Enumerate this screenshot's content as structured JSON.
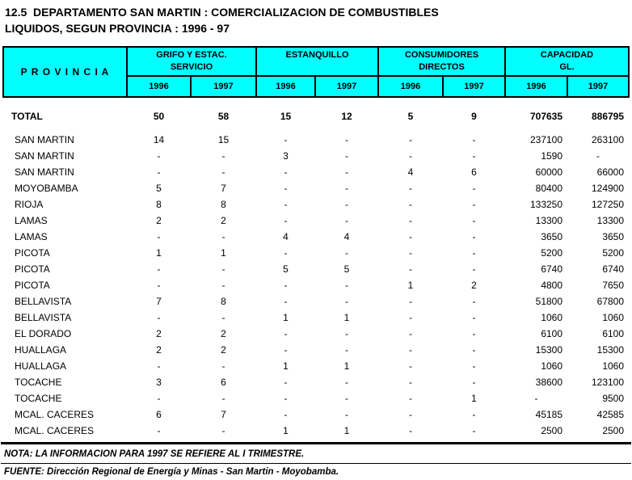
{
  "title": {
    "line1": "12.5  DEPARTAMENTO SAN MARTIN : COMERCIALIZACION DE COMBUSTIBLES",
    "line2": "LIQUIDOS, SEGUN PROVINCIA : 1996 - 97"
  },
  "colors": {
    "header_bg": "#00FFFF",
    "border": "#000000"
  },
  "table": {
    "row_header": "P R O V I N C I A",
    "groups": [
      {
        "line1": "GRIFO Y ESTAC.",
        "line2": "SERVICIO"
      },
      {
        "line1": "ESTANQUILLO",
        "line2": ""
      },
      {
        "line1": "CONSUMIDORES",
        "line2": "DIRECTOS"
      },
      {
        "line1": "CAPACIDAD",
        "line2": "GL."
      }
    ],
    "year_columns": [
      "1996",
      "1997",
      "1996",
      "1997",
      "1996",
      "1997",
      "1996",
      "1997"
    ],
    "total_row": {
      "label": "TOTAL",
      "values": [
        "50",
        "58",
        "15",
        "12",
        "5",
        "9",
        "707635",
        "886795"
      ]
    },
    "rows": [
      {
        "label": "SAN MARTIN",
        "values": [
          "14",
          "15",
          "-",
          "-",
          "-",
          "-",
          "237100",
          "263100"
        ]
      },
      {
        "label": "SAN MARTIN",
        "values": [
          "-",
          "-",
          "3",
          "-",
          "-",
          "-",
          "1590",
          "-"
        ]
      },
      {
        "label": "SAN MARTIN",
        "values": [
          "-",
          "-",
          "-",
          "-",
          "4",
          "6",
          "60000",
          "66000"
        ]
      },
      {
        "label": "MOYOBAMBA",
        "values": [
          "5",
          "7",
          "-",
          "-",
          "-",
          "-",
          "80400",
          "124900"
        ]
      },
      {
        "label": "RIOJA",
        "values": [
          "8",
          "8",
          "-",
          "-",
          "-",
          "-",
          "133250",
          "127250"
        ]
      },
      {
        "label": "LAMAS",
        "values": [
          "2",
          "2",
          "-",
          "-",
          "-",
          "-",
          "13300",
          "13300"
        ]
      },
      {
        "label": "LAMAS",
        "values": [
          "-",
          "-",
          "4",
          "4",
          "-",
          "-",
          "3650",
          "3650"
        ]
      },
      {
        "label": "PICOTA",
        "values": [
          "1",
          "1",
          "-",
          "-",
          "-",
          "-",
          "5200",
          "5200"
        ]
      },
      {
        "label": "PICOTA",
        "values": [
          "-",
          "-",
          "5",
          "5",
          "-",
          "-",
          "6740",
          "6740"
        ]
      },
      {
        "label": "PICOTA",
        "values": [
          "-",
          "-",
          "-",
          "-",
          "1",
          "2",
          "4800",
          "7650"
        ]
      },
      {
        "label": "BELLAVISTA",
        "values": [
          "7",
          "8",
          "-",
          "-",
          "-",
          "-",
          "51800",
          "67800"
        ]
      },
      {
        "label": "BELLAVISTA",
        "values": [
          "-",
          "-",
          "1",
          "1",
          "-",
          "-",
          "1060",
          "1060"
        ]
      },
      {
        "label": "EL DORADO",
        "values": [
          "2",
          "2",
          "-",
          "-",
          "-",
          "-",
          "6100",
          "6100"
        ]
      },
      {
        "label": "HUALLAGA",
        "values": [
          "2",
          "2",
          "-",
          "-",
          "-",
          "-",
          "15300",
          "15300"
        ]
      },
      {
        "label": "HUALLAGA",
        "values": [
          "-",
          "-",
          "1",
          "1",
          "-",
          "-",
          "1060",
          "1060"
        ]
      },
      {
        "label": "TOCACHE",
        "values": [
          "3",
          "6",
          "-",
          "-",
          "-",
          "-",
          "38600",
          "123100"
        ]
      },
      {
        "label": "TOCACHE",
        "values": [
          "-",
          "-",
          "-",
          "-",
          "-",
          "1",
          "-",
          "9500"
        ]
      },
      {
        "label": "MCAL. CACERES",
        "values": [
          "6",
          "7",
          "-",
          "-",
          "-",
          "-",
          "45185",
          "42585"
        ]
      },
      {
        "label": "MCAL. CACERES",
        "values": [
          "-",
          "-",
          "1",
          "1",
          "-",
          "-",
          "2500",
          "2500"
        ]
      }
    ]
  },
  "footer": {
    "nota": "NOTA: LA INFORMACION  PARA 1997 SE REFIERE AL I TRIMESTRE.",
    "fuente": "FUENTE:  Dirección Regional de Energía y Minas - San Martin - Moyobamba."
  }
}
